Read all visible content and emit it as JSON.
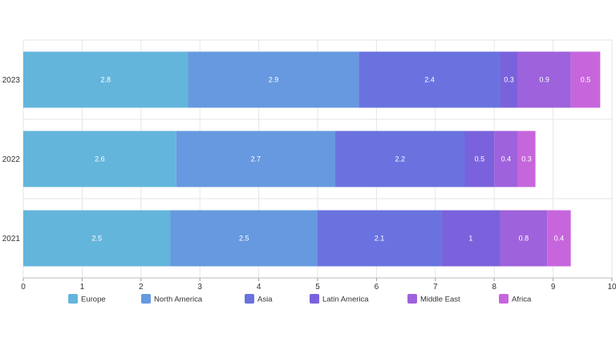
{
  "chart_data": {
    "type": "bar",
    "orientation": "horizontal",
    "stacked": true,
    "title": "",
    "xlabel": "",
    "ylabel": "",
    "categories": [
      "2023",
      "2022",
      "2021"
    ],
    "xlim": [
      0,
      10
    ],
    "xticks": [
      0,
      1,
      2,
      3,
      4,
      5,
      6,
      7,
      8,
      9,
      10
    ],
    "grid": true,
    "legend_position": "bottom",
    "series": [
      {
        "name": "Europe",
        "color": "#64b5dc",
        "values": [
          2.8,
          2.6,
          2.5
        ]
      },
      {
        "name": "North America",
        "color": "#6699df",
        "values": [
          2.9,
          2.7,
          2.5
        ]
      },
      {
        "name": "Asia",
        "color": "#6a72df",
        "values": [
          2.4,
          2.2,
          2.1
        ]
      },
      {
        "name": "Latin America",
        "color": "#7a62dc",
        "values": [
          0.3,
          0.5,
          1
        ]
      },
      {
        "name": "Middle East",
        "color": "#9e62dc",
        "values": [
          0.9,
          0.4,
          0.8
        ]
      },
      {
        "name": "Africa",
        "color": "#c766dc",
        "values": [
          0.5,
          0.3,
          0.4
        ]
      }
    ]
  }
}
